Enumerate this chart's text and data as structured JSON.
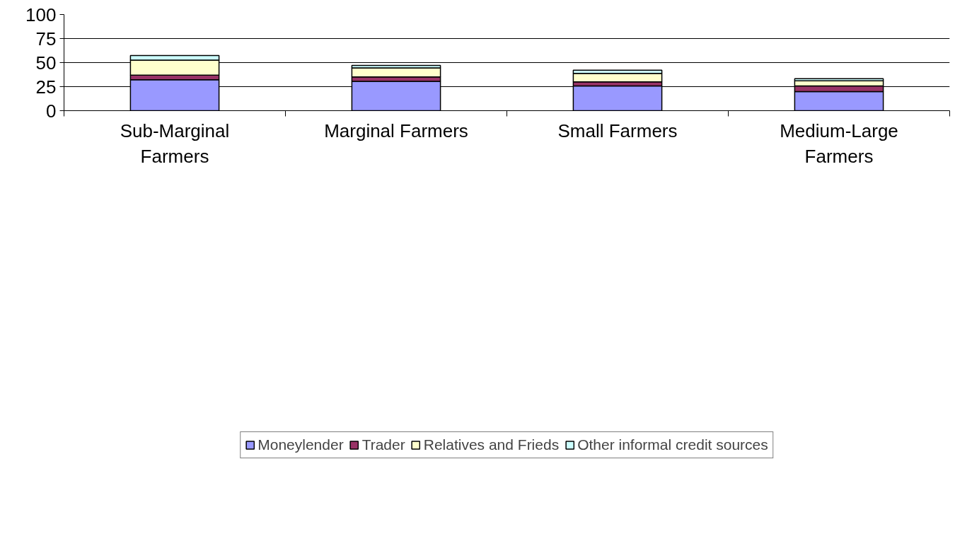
{
  "chart_data": {
    "type": "bar",
    "stacked": true,
    "categories": [
      "Sub-Marginal Farmers",
      "Marginal Farmers",
      "Small Farmers",
      "Medium-Large Farmers"
    ],
    "series": [
      {
        "name": "Moneylender",
        "color": "#9999ff",
        "values": [
          32.2,
          30.6,
          25.8,
          19.9
        ]
      },
      {
        "name": "Trader",
        "color": "#993366",
        "values": [
          4.8,
          4.6,
          4.2,
          5.9
        ]
      },
      {
        "name": "Relatives and Frieds",
        "color": "#ffffcc",
        "values": [
          15.5,
          9.2,
          8.7,
          5.2
        ]
      },
      {
        "name": "Other informal credit sources",
        "color": "#ccffff",
        "values": [
          4.9,
          2.6,
          3.4,
          2.2
        ]
      }
    ],
    "ylim": [
      0,
      100
    ],
    "yticks": [
      0,
      25,
      50,
      75,
      100
    ],
    "grid": "y",
    "legend": "bottom"
  }
}
